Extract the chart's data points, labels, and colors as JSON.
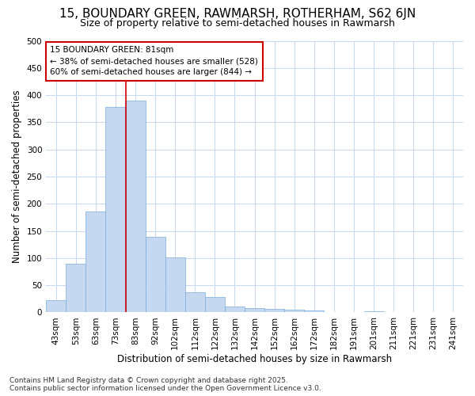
{
  "title1": "15, BOUNDARY GREEN, RAWMARSH, ROTHERHAM, S62 6JN",
  "title2": "Size of property relative to semi-detached houses in Rawmarsh",
  "xlabel": "Distribution of semi-detached houses by size in Rawmarsh",
  "ylabel": "Number of semi-detached properties",
  "bar_color": "#c5d8f0",
  "bar_edge_color": "#7aade0",
  "categories": [
    "43sqm",
    "53sqm",
    "63sqm",
    "73sqm",
    "83sqm",
    "92sqm",
    "102sqm",
    "112sqm",
    "122sqm",
    "132sqm",
    "142sqm",
    "152sqm",
    "162sqm",
    "172sqm",
    "182sqm",
    "191sqm",
    "201sqm",
    "211sqm",
    "221sqm",
    "231sqm",
    "241sqm"
  ],
  "values": [
    22,
    89,
    186,
    378,
    390,
    139,
    101,
    37,
    28,
    11,
    8,
    6,
    5,
    4,
    1,
    0,
    2,
    0,
    1,
    0,
    1
  ],
  "vline_x_idx": 4,
  "vline_color": "#cc0000",
  "annotation_line1": "15 BOUNDARY GREEN: 81sqm",
  "annotation_line2": "← 38% of semi-detached houses are smaller (528)",
  "annotation_line3": "60% of semi-detached houses are larger (844) →",
  "annotation_box_color": "#ffffff",
  "annotation_box_edge": "#cc0000",
  "ylim": [
    0,
    500
  ],
  "yticks": [
    0,
    50,
    100,
    150,
    200,
    250,
    300,
    350,
    400,
    450,
    500
  ],
  "grid_color": "#c8d8f0",
  "background_color": "#ffffff",
  "plot_bg_color": "#ffffff",
  "footer": "Contains HM Land Registry data © Crown copyright and database right 2025.\nContains public sector information licensed under the Open Government Licence v3.0.",
  "title_fontsize": 11,
  "subtitle_fontsize": 9,
  "axis_label_fontsize": 8.5,
  "tick_fontsize": 7.5,
  "annotation_fontsize": 7.5,
  "footer_fontsize": 6.5
}
